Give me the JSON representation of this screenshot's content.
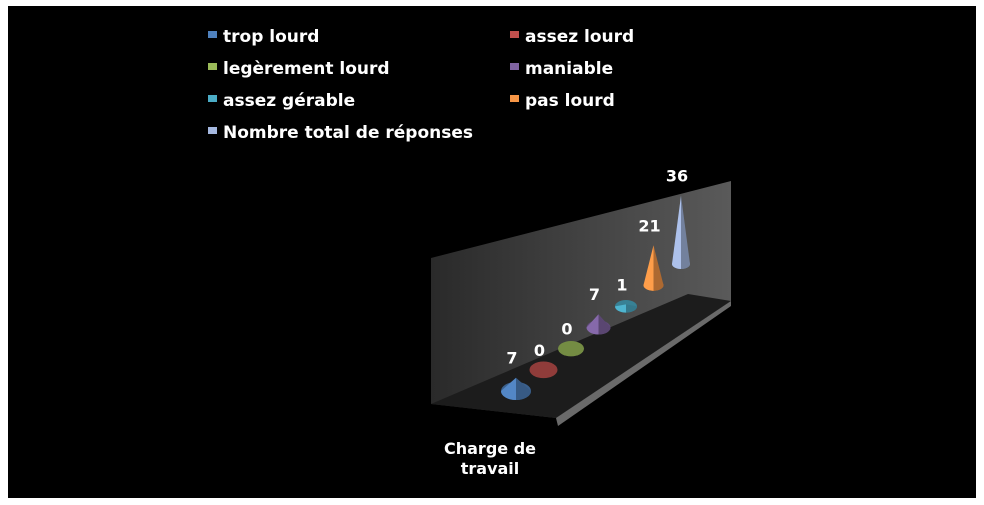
{
  "chart_data": {
    "type": "bar",
    "shape": "3d-cone",
    "categories": [
      "Charge de travail"
    ],
    "series": [
      {
        "name": "trop lourd",
        "values": [
          7
        ],
        "color": "#4f81bd"
      },
      {
        "name": "assez lourd",
        "values": [
          0
        ],
        "color": "#c0504d"
      },
      {
        "name": "legèrement lourd",
        "values": [
          0
        ],
        "color": "#9bbb59"
      },
      {
        "name": "maniable",
        "values": [
          7
        ],
        "color": "#8064a2"
      },
      {
        "name": "assez gérable",
        "values": [
          1
        ],
        "color": "#4bacc6"
      },
      {
        "name": "pas lourd",
        "values": [
          21
        ],
        "color": "#f79646"
      },
      {
        "name": "Nombre total de réponses",
        "values": [
          36
        ],
        "color": "#a5b8e0"
      }
    ],
    "legend_position": "top",
    "background": "#000000",
    "grid": false
  }
}
